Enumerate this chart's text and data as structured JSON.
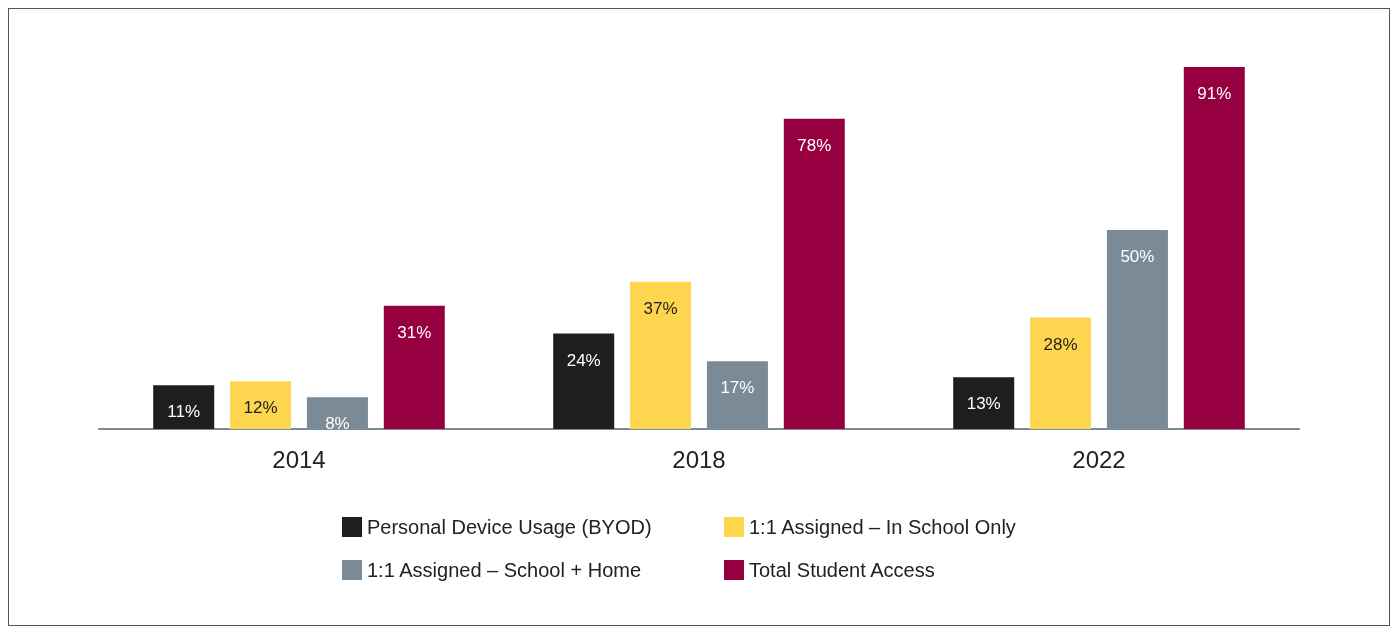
{
  "chart_data": {
    "type": "bar",
    "categories": [
      "2014",
      "2018",
      "2022"
    ],
    "series": [
      {
        "name": "Personal Device Usage (BYOD)",
        "color": "#1f1e1f",
        "values": [
          11,
          24,
          13
        ],
        "value_labels": [
          "11%",
          "24%",
          "13%"
        ]
      },
      {
        "name": "1:1 Assigned – In School Only",
        "color": "#fed54f",
        "values": [
          12,
          37,
          28
        ],
        "value_labels": [
          "12%",
          "37%",
          "28%"
        ]
      },
      {
        "name": "1:1 Assigned – School + Home",
        "color": "#7b8a97",
        "values": [
          8,
          17,
          50
        ],
        "value_labels": [
          "8%",
          "17%",
          "50%"
        ]
      },
      {
        "name": "Total Student Access",
        "color": "#960040",
        "values": [
          31,
          78,
          91
        ],
        "value_labels": [
          "31%",
          "78%",
          "91%"
        ]
      }
    ],
    "legend": "bottom",
    "grid": false
  }
}
